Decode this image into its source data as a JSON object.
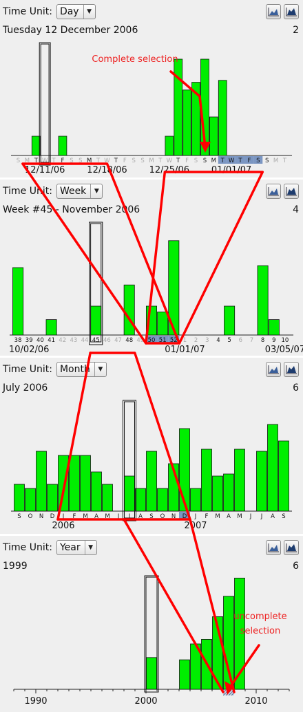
{
  "colors": {
    "bar": "#00ee00",
    "panel": "#efefef",
    "selected_tick": "#7b96c2",
    "arrow": "#ff0000",
    "annotation": "#ee2222"
  },
  "annotations": {
    "complete": "Complete selection",
    "uncomplete_line1": "uncomplete",
    "uncomplete_line2": "selection"
  },
  "panels": [
    {
      "label": "Time Unit:",
      "unit": "Day",
      "subtitle": "Tuesday 12 December 2006",
      "count": "2"
    },
    {
      "label": "Time Unit:",
      "unit": "Week",
      "subtitle": "Week #45 - November 2006",
      "count": "4"
    },
    {
      "label": "Time Unit:",
      "unit": "Month",
      "subtitle": "July 2006",
      "count": "6"
    },
    {
      "label": "Time Unit:",
      "unit": "Year",
      "subtitle": "1999",
      "count": "6"
    }
  ],
  "icons": {
    "zoom_in": "area-chart-icon",
    "zoom_out": "area-chart-filled-icon"
  },
  "chart_data": [
    {
      "type": "bar",
      "unit": "Day",
      "categories": [
        "S",
        "M",
        "T",
        "W",
        "T",
        "F",
        "S",
        "S",
        "M",
        "T",
        "W",
        "T",
        "F",
        "S",
        "S",
        "M",
        "T",
        "W",
        "T",
        "F",
        "S",
        "S",
        "M",
        "T",
        "W",
        "T",
        "F",
        "S",
        "S",
        "M",
        "T"
      ],
      "dimmed": [
        0,
        1,
        3,
        4,
        6,
        7,
        9,
        10,
        12,
        13,
        14,
        15,
        16,
        17,
        19,
        20,
        29,
        30
      ],
      "selected": [
        23,
        24,
        25,
        26,
        27
      ],
      "values": [
        0,
        0,
        1,
        0,
        0,
        1,
        0,
        0,
        0,
        0,
        0,
        0,
        0,
        0,
        0,
        0,
        0,
        1,
        5,
        3.4,
        3.8,
        5,
        2,
        3.9,
        0,
        0,
        0,
        0,
        0,
        0,
        0
      ],
      "value_index_offset": 0,
      "date_labels": [
        {
          "text": "12/11/06",
          "at": 3
        },
        {
          "text": "12/18/06",
          "at": 10
        },
        {
          "text": "12/25/06",
          "at": 17
        },
        {
          "text": "01/01/07",
          "at": 24
        }
      ],
      "highlight": 3
    },
    {
      "type": "bar",
      "unit": "Week",
      "categories": [
        "38",
        "39",
        "40",
        "41",
        "42",
        "43",
        "44",
        "45",
        "46",
        "47",
        "48",
        "49",
        "50",
        "51",
        "52",
        "1",
        "2",
        "3",
        "4",
        "5",
        "6",
        "7",
        "8",
        "9",
        "10"
      ],
      "dimmed": [
        4,
        5,
        6,
        8,
        9,
        11,
        15,
        16,
        17,
        20,
        21
      ],
      "selected": [
        12,
        13,
        14
      ],
      "values": [
        3.5,
        0,
        0,
        0.8,
        0,
        0,
        0,
        1.5,
        0,
        0,
        2.6,
        0,
        1.5,
        1.2,
        4.9,
        0,
        0,
        0,
        0,
        1.5,
        0,
        0,
        3.6,
        0.8,
        0
      ],
      "date_labels": [
        {
          "text": "10/02/06",
          "at": 1
        },
        {
          "text": "01/01/07",
          "at": 15
        },
        {
          "text": "03/05/07",
          "at": 24
        }
      ],
      "highlight": 7
    },
    {
      "type": "bar",
      "unit": "Month",
      "categories": [
        "S",
        "O",
        "N",
        "D",
        "J",
        "F",
        "M",
        "A",
        "M",
        "J",
        "J",
        "A",
        "S",
        "O",
        "N",
        "D",
        "J",
        "F",
        "M",
        "A",
        "M",
        "J",
        "J",
        "A",
        "S"
      ],
      "dimmed": [],
      "selected": [
        15
      ],
      "values": [
        1.3,
        1.1,
        2.9,
        1.3,
        2.7,
        2.7,
        2.7,
        1.9,
        1.3,
        0,
        1.7,
        1.1,
        2.9,
        1.1,
        2.3,
        4.0,
        1.1,
        3.0,
        1.7,
        1.8,
        3.0,
        0,
        2.9,
        4.2,
        3.4
      ],
      "date_labels": [
        {
          "text": "2006",
          "at": 4
        },
        {
          "text": "2007",
          "at": 16
        }
      ],
      "highlight": 10
    },
    {
      "type": "bar",
      "unit": "Year",
      "x": [
        2000,
        2001,
        2002,
        2003,
        2004,
        2005,
        2006,
        2007,
        2008
      ],
      "values": [
        1.4,
        0,
        0,
        1.3,
        2.0,
        2.2,
        3.2,
        4.1,
        4.9
      ],
      "selected": [
        2007
      ],
      "highlight": 2000,
      "xlim": [
        1988,
        2013
      ],
      "tick_labels": [
        "1990",
        "2000",
        "2010"
      ]
    }
  ]
}
